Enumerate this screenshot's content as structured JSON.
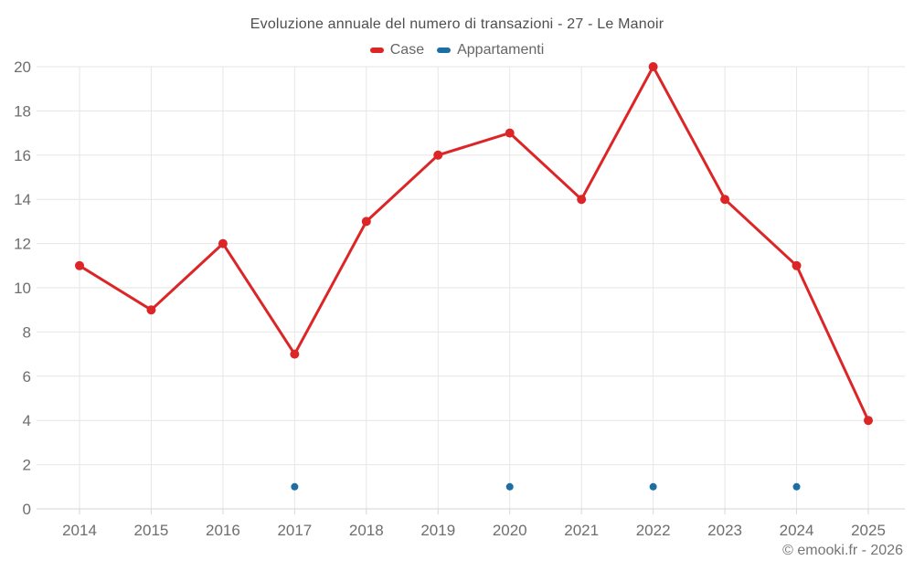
{
  "chart_data": {
    "type": "line",
    "title": "Evoluzione annuale del numero di transazioni - 27 - Le Manoir",
    "categories": [
      "2014",
      "2015",
      "2016",
      "2017",
      "2018",
      "2019",
      "2020",
      "2021",
      "2022",
      "2023",
      "2024",
      "2025"
    ],
    "series": [
      {
        "name": "Case",
        "color": "#dc2526",
        "values": [
          11,
          9,
          12,
          7,
          13,
          16,
          17,
          14,
          20,
          14,
          11,
          4
        ],
        "marker_radius": 5,
        "line_width": 3
      },
      {
        "name": "Appartamenti",
        "color": "#1c6ea4",
        "values": [
          null,
          null,
          null,
          1,
          null,
          null,
          1,
          null,
          1,
          null,
          1,
          null
        ],
        "marker_radius": 4,
        "line_width": 0
      }
    ],
    "xlabel": "",
    "ylabel": "",
    "ylim": [
      0,
      20
    ],
    "yticks": [
      0,
      2,
      4,
      6,
      8,
      10,
      12,
      14,
      16,
      18,
      20
    ],
    "grid": true,
    "legend_position": "top"
  },
  "footer": {
    "copyright": "© emooki.fr - 2026"
  },
  "colors": {
    "grid": "#e6e6e6",
    "axis": "#d6d6d6",
    "background": "#ffffff"
  }
}
